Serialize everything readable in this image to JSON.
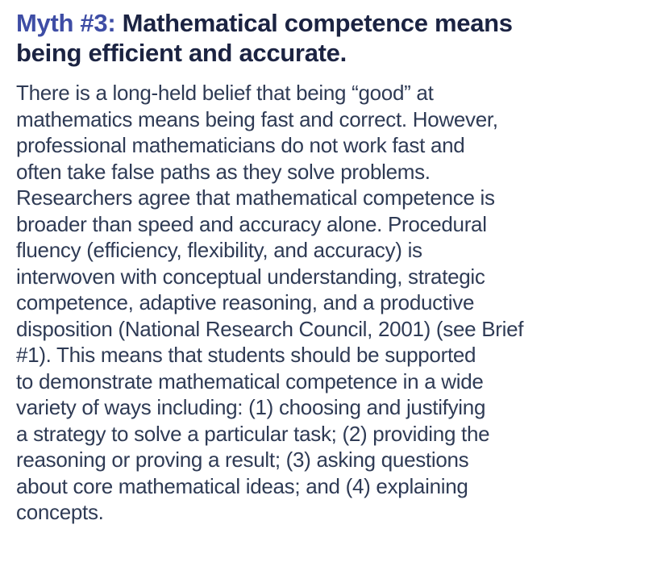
{
  "page": {
    "background_color": "#ffffff"
  },
  "heading": {
    "prefix": "Myth #3:",
    "rest": "Mathematical competence means\nbeing efficient and accurate.",
    "prefix_color": "#3e4da5",
    "rest_color": "#1b2342"
  },
  "body": {
    "text": "There is a long-held belief that being “good” at\nmathematics means being fast and correct. However,\nprofessional mathematicians do not work fast and\noften take false paths as they solve problems.\nResearchers agree that mathematical competence is\nbroader than speed and accuracy alone. Procedural\nfluency (efficiency, flexibility, and accuracy) is\ninterwoven with conceptual understanding, strategic\ncompetence, adaptive reasoning, and a productive\ndisposition (National Research Council, 2001) (see Brief\n#1). This means that students should be supported\nto demonstrate mathematical competence in a wide\nvariety of ways including: (1) choosing and justifying\na strategy to solve a particular task; (2) providing the\nreasoning or proving a result; (3) asking questions\nabout core mathematical ideas; and (4) explaining\nconcepts.",
    "color": "#2f3b55"
  }
}
